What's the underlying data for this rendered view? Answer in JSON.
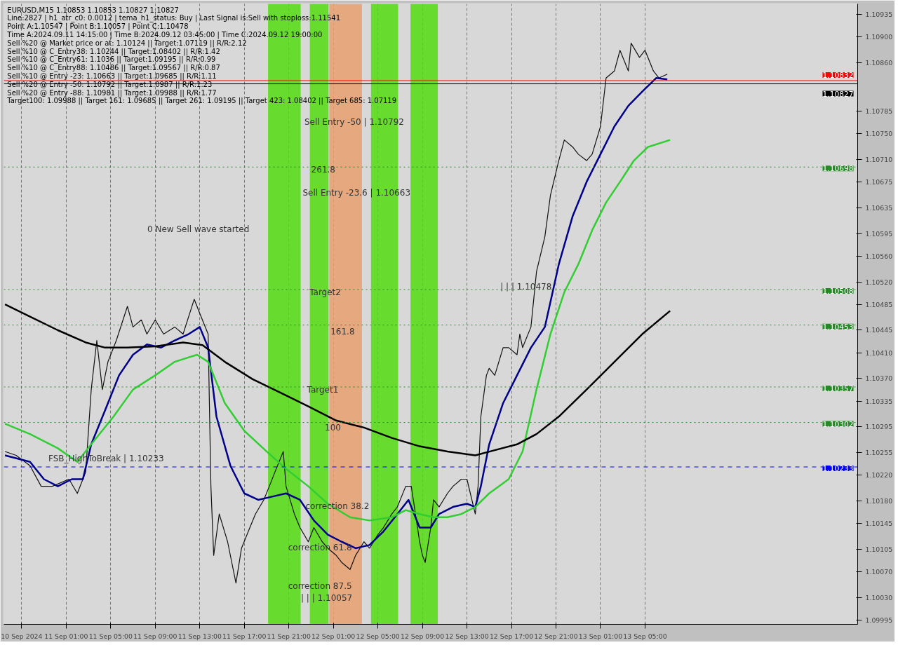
{
  "chart_data": {
    "type": "line",
    "title": "EURUSD,M15  1.10853 1.10853 1.10827 1.10827",
    "annotations": [
      "Line:2827 | h1_atr_c0: 0.0012 | tema_h1_status: Buy | Last Signal is:Sell with stoploss:1.11541",
      "Point A:1.10547 | Point B:1.10057 | Point C:1.10478",
      "Time A:2024.09.11 14:15:00 | Time B:2024.09.12 03:45:00 | Time C:2024.09.12 19:00:00",
      "Sell %20 @ Market price or at: 1.10124 || Target:1.07119 || R/R:2.12",
      "Sell %10 @ C_Entry38: 1.10244 || Target:1.08402 || R/R:1.42",
      "Sell %10 @ C_Entry61: 1.1036 || Target:1.09195 || R/R:0.99",
      "Sell %10 @ C_Entry88: 1.10486 || Target:1.09567 || R/R:0.87",
      "Sell %10 @ Entry -23: 1.10663 || Target:1.09685 || R/R:1.11",
      "Sell %20 @ Entry -50: 1.10792 || Target:1.0987 || R/R:1.23",
      "Sell %20 @ Entry -88: 1.10981 || Target:1.09988 || R/R:1.77",
      "Target100: 1.09988 || Target 161: 1.09685 || Target 261: 1.09195 || Target 423: 1.08402 || Target 685: 1.07119",
      "Sell Entry -50 | 1.10792",
      "261.8",
      "Sell Entry -23.6 | 1.10663",
      "0 New Sell wave started",
      "Target2",
      "Target1",
      "100",
      "correction 61.8",
      "correction 87.5",
      "| | | 1.10057",
      {
        "text": "161.8",
        "x": "2024-09-12T00:45",
        "y": 1.10439
      },
      {
        "text": "FSB_HighToBreak | 1.10233",
        "x": "2024-09-10T23:24",
        "y": 1.10238
      },
      {
        "text": "correction 38.2",
        "x": "2024-09-11T22:30",
        "y": 1.10165
      },
      {
        "text": "| | | 1.10478",
        "x": "2024-09-12T16:00",
        "y": 1.10505
      }
    ],
    "x": [
      "2024-09-10T19:30",
      "2024-09-10T20:30",
      "2024-09-10T21:45",
      "2024-09-10T22:45",
      "2024-09-10T23:45",
      "2024-09-11T01:15",
      "2024-09-11T02:00",
      "2024-09-11T02:45",
      "2024-09-11T03:15",
      "2024-09-11T03:45",
      "2024-09-11T04:15",
      "2024-09-11T04:45",
      "2024-09-11T05:30",
      "2024-09-11T06:30",
      "2024-09-11T07:00",
      "2024-09-11T07:45",
      "2024-09-11T08:15",
      "2024-09-11T09:00",
      "2024-09-11T09:45",
      "2024-09-11T10:45",
      "2024-09-11T11:30",
      "2024-09-11T12:30",
      "2024-09-11T13:00",
      "2024-09-11T13:45",
      "2024-09-11T14:00",
      "2024-09-11T14:15",
      "2024-09-11T14:45",
      "2024-09-11T15:30",
      "2024-09-11T16:15",
      "2024-09-11T16:45",
      "2024-09-11T17:30",
      "2024-09-11T18:00",
      "2024-09-11T18:45",
      "2024-09-11T19:15",
      "2024-09-11T19:45",
      "2024-09-11T20:30",
      "2024-09-11T20:45",
      "2024-09-11T21:30",
      "2024-09-11T22:00",
      "2024-09-11T22:45",
      "2024-09-11T23:15",
      "2024-09-12T00:00",
      "2024-09-12T00:30",
      "2024-09-12T01:15",
      "2024-09-12T01:45",
      "2024-09-12T02:30",
      "2024-09-12T03:00",
      "2024-09-12T03:45",
      "2024-09-12T04:15",
      "2024-09-12T05:00",
      "2024-09-12T05:30",
      "2024-09-12T06:15",
      "2024-09-12T06:45",
      "2024-09-12T07:30",
      "2024-09-12T08:00",
      "2024-09-12T08:45",
      "2024-09-12T09:00",
      "2024-09-12T09:15",
      "2024-09-12T09:45",
      "2024-09-12T10:00",
      "2024-09-12T10:30",
      "2024-09-12T11:15",
      "2024-09-12T11:45",
      "2024-09-12T12:30",
      "2024-09-12T13:00",
      "2024-09-12T13:45",
      "2024-09-12T14:00",
      "2024-09-12T14:15",
      "2024-09-12T14:45",
      "2024-09-12T15:00",
      "2024-09-12T15:30",
      "2024-09-12T16:15",
      "2024-09-12T16:45",
      "2024-09-12T17:30",
      "2024-09-12T17:45",
      "2024-09-12T18:00",
      "2024-09-12T18:45",
      "2024-09-12T19:15",
      "2024-09-12T20:00",
      "2024-09-12T20:30",
      "2024-09-12T21:15",
      "2024-09-12T21:45",
      "2024-09-12T22:30",
      "2024-09-12T23:00",
      "2024-09-12T23:45",
      "2024-09-13T00:15",
      "2024-09-13T01:00",
      "2024-09-13T01:30",
      "2024-09-13T02:15",
      "2024-09-13T02:45",
      "2024-09-13T03:30",
      "2024-09-13T03:45",
      "2024-09-13T04:30",
      "2024-09-13T05:00",
      "2024-09-13T05:45",
      "2024-09-13T06:15",
      "2024-09-13T07:00"
    ],
    "series": [
      {
        "color": "#111111",
        "values": [
          1.10257,
          1.10251,
          1.10235,
          1.10203,
          1.10203,
          1.10214,
          1.10192,
          1.10225,
          1.10353,
          1.10429,
          1.10353,
          1.10396,
          1.10429,
          1.10482,
          1.1045,
          1.10461,
          1.10439,
          1.10461,
          1.10439,
          1.1045,
          1.10439,
          1.10493,
          1.10471,
          1.10439,
          1.10203,
          1.10096,
          1.1016,
          1.10117,
          1.10053,
          1.10107,
          1.10139,
          1.1016,
          1.10182,
          1.10203,
          1.10225,
          1.10257,
          1.10203,
          1.1016,
          1.10139,
          1.10117,
          1.10139,
          1.10117,
          1.10107,
          1.10096,
          1.10085,
          1.10074,
          1.10096,
          1.10117,
          1.10107,
          1.10128,
          1.10139,
          1.1016,
          1.10171,
          1.10203,
          1.10203,
          1.10117,
          1.10096,
          1.10085,
          1.10139,
          1.10182,
          1.10171,
          1.10192,
          1.10203,
          1.10214,
          1.10214,
          1.1016,
          1.10203,
          1.10311,
          1.10375,
          1.10386,
          1.10375,
          1.10418,
          1.10418,
          1.10407,
          1.10439,
          1.10418,
          1.1045,
          1.10536,
          1.1059,
          1.10654,
          1.10708,
          1.1074,
          1.10729,
          1.10718,
          1.10708,
          1.10718,
          1.10761,
          1.10836,
          1.10847,
          1.10879,
          1.10847,
          1.1089,
          1.10868,
          1.10879,
          1.10847,
          1.10836,
          1.10842
        ]
      },
      {
        "color": "#00008b",
        "x": [
          "2024-09-10T19:30",
          "2024-09-10T21:45",
          "2024-09-10T23:00",
          "2024-09-11T00:15",
          "2024-09-11T01:30",
          "2024-09-11T02:30",
          "2024-09-11T03:15",
          "2024-09-11T04:30",
          "2024-09-11T05:45",
          "2024-09-11T07:00",
          "2024-09-11T08:15",
          "2024-09-11T09:30",
          "2024-09-11T10:45",
          "2024-09-11T12:00",
          "2024-09-11T13:00",
          "2024-09-11T13:45",
          "2024-09-11T14:30",
          "2024-09-11T15:45",
          "2024-09-11T17:00",
          "2024-09-11T18:15",
          "2024-09-11T19:30",
          "2024-09-11T20:45",
          "2024-09-11T22:00",
          "2024-09-11T23:15",
          "2024-09-12T00:30",
          "2024-09-12T01:45",
          "2024-09-12T03:00",
          "2024-09-12T04:15",
          "2024-09-12T05:30",
          "2024-09-12T06:45",
          "2024-09-12T07:45",
          "2024-09-12T08:45",
          "2024-09-12T09:45",
          "2024-09-12T10:30",
          "2024-09-12T11:45",
          "2024-09-12T13:00",
          "2024-09-12T13:45",
          "2024-09-12T14:15",
          "2024-09-12T15:00",
          "2024-09-12T16:15",
          "2024-09-12T17:30",
          "2024-09-12T18:45",
          "2024-09-12T20:00",
          "2024-09-12T21:15",
          "2024-09-12T22:30",
          "2024-09-12T23:45",
          "2024-09-13T01:00",
          "2024-09-13T02:15",
          "2024-09-13T03:30",
          "2024-09-13T04:45",
          "2024-09-13T06:00",
          "2024-09-13T07:00"
        ],
        "values": [
          1.10251,
          1.10241,
          1.10214,
          1.10203,
          1.10214,
          1.10214,
          1.10268,
          1.10321,
          1.10375,
          1.10407,
          1.10423,
          1.10418,
          1.10429,
          1.10439,
          1.1045,
          1.10418,
          1.10311,
          1.10235,
          1.10192,
          1.10182,
          1.10187,
          1.10192,
          1.10182,
          1.1015,
          1.10128,
          1.10117,
          1.10107,
          1.10112,
          1.10133,
          1.1016,
          1.10182,
          1.10139,
          1.10139,
          1.1016,
          1.10171,
          1.10176,
          1.10171,
          1.10203,
          1.10268,
          1.10332,
          1.10375,
          1.10418,
          1.1045,
          1.10547,
          1.10622,
          1.10675,
          1.10718,
          1.10761,
          1.10793,
          1.10815,
          1.10836,
          1.10834
        ]
      },
      {
        "color": "#32cd32",
        "x": [
          "2024-09-10T19:30",
          "2024-09-10T21:45",
          "2024-09-11T00:15",
          "2024-09-11T02:00",
          "2024-09-11T03:15",
          "2024-09-11T05:15",
          "2024-09-11T07:00",
          "2024-09-11T09:00",
          "2024-09-11T10:45",
          "2024-09-11T12:45",
          "2024-09-11T13:45",
          "2024-09-11T15:15",
          "2024-09-11T17:00",
          "2024-09-11T19:00",
          "2024-09-11T20:45",
          "2024-09-11T22:45",
          "2024-09-12T00:30",
          "2024-09-12T02:30",
          "2024-09-12T04:15",
          "2024-09-12T06:15",
          "2024-09-12T07:30",
          "2024-09-12T08:45",
          "2024-09-12T10:00",
          "2024-09-12T11:15",
          "2024-09-12T12:30",
          "2024-09-12T13:45",
          "2024-09-12T15:00",
          "2024-09-12T16:45",
          "2024-09-12T18:00",
          "2024-09-12T19:15",
          "2024-09-12T20:30",
          "2024-09-12T21:45",
          "2024-09-12T23:00",
          "2024-09-13T00:15",
          "2024-09-13T01:30",
          "2024-09-13T02:45",
          "2024-09-13T04:00",
          "2024-09-13T05:15",
          "2024-09-13T07:15"
        ],
        "values": [
          1.103,
          1.10284,
          1.10262,
          1.10241,
          1.10268,
          1.10311,
          1.10353,
          1.10375,
          1.10396,
          1.10407,
          1.10396,
          1.10332,
          1.10289,
          1.10257,
          1.1023,
          1.10203,
          1.10176,
          1.10155,
          1.1015,
          1.10155,
          1.10166,
          1.1016,
          1.10155,
          1.10155,
          1.1016,
          1.10171,
          1.10192,
          1.10214,
          1.10257,
          1.10353,
          1.10439,
          1.10504,
          1.10547,
          1.106,
          1.10643,
          1.10675,
          1.10708,
          1.10729,
          1.1074
        ]
      },
      {
        "color": "#000000",
        "x": [
          "2024-09-10T19:30",
          "2024-09-10T21:45",
          "2024-09-11T00:15",
          "2024-09-11T02:45",
          "2024-09-11T04:30",
          "2024-09-11T06:30",
          "2024-09-11T09:00",
          "2024-09-11T11:30",
          "2024-09-11T13:15",
          "2024-09-11T15:15",
          "2024-09-11T17:45",
          "2024-09-11T20:15",
          "2024-09-11T22:45",
          "2024-09-12T01:15",
          "2024-09-12T03:45",
          "2024-09-12T06:15",
          "2024-09-12T08:45",
          "2024-09-12T11:15",
          "2024-09-12T13:45",
          "2024-09-12T15:30",
          "2024-09-12T17:30",
          "2024-09-12T19:15",
          "2024-09-12T21:15",
          "2024-09-12T23:45",
          "2024-09-13T02:15",
          "2024-09-13T04:45",
          "2024-09-13T07:15"
        ],
        "values": [
          1.10485,
          1.10466,
          1.10445,
          1.10426,
          1.10418,
          1.10418,
          1.1042,
          1.10426,
          1.10422,
          1.10396,
          1.10369,
          1.10348,
          1.10327,
          1.10305,
          1.10294,
          1.10278,
          1.10265,
          1.10257,
          1.10251,
          1.10259,
          1.10268,
          1.10284,
          1.10311,
          1.10353,
          1.10396,
          1.10439,
          1.10475
        ]
      }
    ],
    "xlim": [
      "2024-09-10T19:24",
      "2024-09-14T00:06"
    ],
    "xticks": [
      {
        "value": "2024-09-10T21:00",
        "label": "10 Sep 2024"
      },
      {
        "value": "2024-09-11T01:00",
        "label": "11 Sep 01:00"
      },
      {
        "value": "2024-09-11T05:00",
        "label": "11 Sep 05:00"
      },
      {
        "value": "2024-09-11T09:00",
        "label": "11 Sep 09:00"
      },
      {
        "value": "2024-09-11T13:00",
        "label": "11 Sep 13:00"
      },
      {
        "value": "2024-09-11T17:00",
        "label": "11 Sep 17:00"
      },
      {
        "value": "2024-09-11T21:00",
        "label": "11 Sep 21:00"
      },
      {
        "value": "2024-09-12T01:00",
        "label": "12 Sep 01:00"
      },
      {
        "value": "2024-09-12T05:00",
        "label": "12 Sep 05:00"
      },
      {
        "value": "2024-09-12T09:00",
        "label": "12 Sep 09:00"
      },
      {
        "value": "2024-09-12T13:00",
        "label": "12 Sep 13:00"
      },
      {
        "value": "2024-09-12T17:00",
        "label": "12 Sep 17:00"
      },
      {
        "value": "2024-09-12T21:00",
        "label": "12 Sep 21:00"
      },
      {
        "value": "2024-09-13T01:00",
        "label": "13 Sep 01:00"
      },
      {
        "value": "2024-09-13T05:00",
        "label": "13 Sep 05:00"
      }
    ],
    "ylim": [
      1.09989,
      1.10951
    ],
    "yticks": [
      1.09995,
      {
        "value": 1.1003,
        "label": "1.10030"
      },
      {
        "value": 1.1007,
        "label": "1.10070"
      },
      1.10105,
      1.10145,
      {
        "value": 1.1018,
        "label": "1.10180"
      },
      {
        "value": 1.1022,
        "label": "1.10220"
      },
      1.10255,
      1.10295,
      1.10335,
      {
        "value": 1.1037,
        "label": "1.10370"
      },
      {
        "value": 1.1041,
        "label": "1.10410"
      },
      1.10445,
      1.10485,
      {
        "value": 1.1052,
        "label": "1.10520"
      },
      {
        "value": 1.1056,
        "label": "1.10560"
      },
      1.10595,
      1.10635,
      1.10675,
      {
        "value": 1.1071,
        "label": "1.10710"
      },
      {
        "value": 1.1075,
        "label": "1.10750"
      },
      1.10785,
      {
        "value": 1.1086,
        "label": "1.10860"
      },
      {
        "value": 1.109,
        "label": "1.10900"
      },
      1.10935
    ],
    "ref_lines": [
      {
        "axis": "y",
        "value": 1.10832,
        "label": "1.10832",
        "color": "#ff0000",
        "line_style": "solid"
      },
      {
        "axis": "y",
        "value": 1.10827,
        "label": "1.10827",
        "color": "#000000",
        "line_style": "solid"
      },
      {
        "axis": "y",
        "value": 1.10698,
        "label": "1.10698",
        "color": "#228b22",
        "line_style": "dotted"
      },
      {
        "axis": "y",
        "value": 1.10508,
        "label": "1.10508",
        "color": "#228b22",
        "line_style": "dotted"
      },
      {
        "axis": "y",
        "value": 1.10453,
        "label": "1.10453",
        "color": "#228b22",
        "line_style": "dotted"
      },
      {
        "axis": "y",
        "value": 1.10357,
        "label": "1.10357",
        "color": "#228b22",
        "line_style": "dotted"
      },
      {
        "axis": "y",
        "value": 1.10302,
        "label": "1.10302",
        "color": "#228b22",
        "line_style": "dotted"
      },
      {
        "axis": "y",
        "value": 1.10233,
        "label": "1.10233",
        "color": "#0000ff",
        "line_style": "dashed"
      }
    ],
    "bands": [
      {
        "axis": "x",
        "from": "2024-09-11T19:08",
        "to": "2024-09-11T22:04",
        "color": "#55dd11"
      },
      {
        "axis": "x",
        "from": "2024-09-11T22:53",
        "to": "2024-09-12T00:34",
        "color": "#55dd11"
      },
      {
        "axis": "x",
        "from": "2024-09-12T00:38",
        "to": "2024-09-12T03:34",
        "color": "#e8a070"
      },
      {
        "axis": "x",
        "from": "2024-09-12T04:23",
        "to": "2024-09-12T06:49",
        "color": "#55dd11"
      },
      {
        "axis": "x",
        "from": "2024-09-12T07:56",
        "to": "2024-09-12T10:23",
        "color": "#55dd11"
      }
    ],
    "grid": "x",
    "line_style": "solid",
    "marker": "none"
  }
}
